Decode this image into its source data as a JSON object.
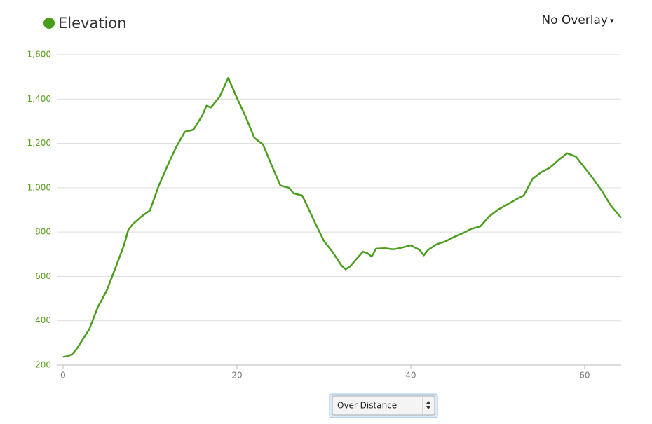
{
  "chart_data": {
    "type": "line",
    "x": [
      0,
      0.5,
      1,
      1.5,
      2,
      3,
      4,
      5,
      6,
      7,
      7.5,
      8,
      9,
      10,
      11,
      12,
      13,
      14,
      15,
      16,
      16.5,
      17,
      18,
      19,
      20,
      21,
      22,
      23,
      24,
      25,
      26,
      26.5,
      27.5,
      28,
      29,
      30,
      31,
      32,
      32.5,
      33,
      34,
      34.5,
      35,
      35.5,
      36,
      37,
      38,
      39,
      40,
      41,
      41.5,
      42,
      43,
      44,
      45,
      46,
      47,
      48,
      49,
      50,
      51,
      52,
      53,
      54,
      55,
      56,
      57,
      58,
      59,
      60,
      61,
      62,
      63,
      64.2
    ],
    "series": [
      {
        "name": "Elevation",
        "color": "#4a9e1c",
        "values": [
          237,
          240,
          248,
          270,
          300,
          361,
          462,
          535,
          636,
          740,
          810,
          835,
          870,
          898,
          1009,
          1098,
          1183,
          1252,
          1262,
          1325,
          1370,
          1362,
          1410,
          1495,
          1405,
          1320,
          1225,
          1195,
          1100,
          1010,
          1000,
          975,
          965,
          925,
          840,
          760,
          710,
          650,
          632,
          645,
          690,
          712,
          705,
          690,
          725,
          727,
          722,
          730,
          740,
          720,
          695,
          720,
          745,
          758,
          778,
          795,
          815,
          825,
          870,
          900,
          922,
          945,
          965,
          1040,
          1070,
          1090,
          1125,
          1155,
          1140,
          1090,
          1040,
          985,
          920,
          865
        ]
      }
    ],
    "xlim": [
      0,
      64.2
    ],
    "xticks": [
      0,
      20,
      40,
      60
    ],
    "ylim": [
      200,
      1600
    ],
    "yticks": [
      200,
      400,
      600,
      800,
      {
        "value": 1000,
        "label": "1,000"
      },
      {
        "value": 1200,
        "label": "1,200"
      },
      {
        "value": 1400,
        "label": "1,400"
      },
      {
        "value": 1600,
        "label": "1,600"
      }
    ],
    "grid": true
  },
  "controls": {
    "overlay": "No Overlay",
    "overlay_arrow": "▾",
    "x_mode": "Over Distance"
  }
}
